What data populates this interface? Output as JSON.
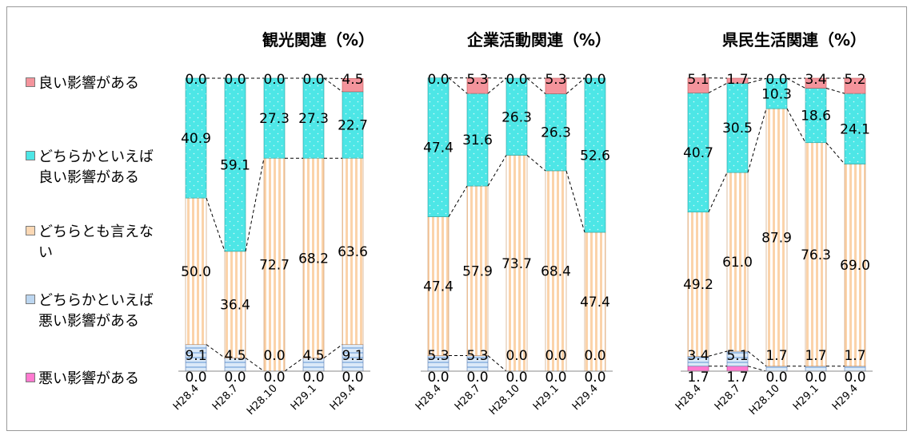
{
  "categories": [
    "H28.4",
    "H28.7",
    "H28.10",
    "H29.1",
    "H29.4"
  ],
  "legend": [
    {
      "key": "good",
      "label": "良い影響がある",
      "color": "#f4949c"
    },
    {
      "key": "somewhat_good",
      "label": "どちらかといえば\n良い影響がある",
      "color": "#4de6e6"
    },
    {
      "key": "neutral",
      "label": "どちらとも言えな\nい",
      "color": "#fbd8b4"
    },
    {
      "key": "somewhat_bad",
      "label": "どちらかといえば\n悪い影響がある",
      "color": "#bcd6f0"
    },
    {
      "key": "bad",
      "label": "悪い影響がある",
      "color": "#ff7ad0"
    }
  ],
  "chart_data": [
    {
      "type": "bar",
      "stacked": true,
      "percent": true,
      "title": "観光関連（%）",
      "categories": [
        "H28.4",
        "H28.7",
        "H28.10",
        "H29.1",
        "H29.4"
      ],
      "series": [
        {
          "name": "悪い影響がある",
          "values": [
            0.0,
            0.0,
            0.0,
            0.0,
            0.0
          ]
        },
        {
          "name": "どちらかといえば悪い影響がある",
          "values": [
            9.1,
            4.5,
            0.0,
            4.5,
            9.1
          ]
        },
        {
          "name": "どちらとも言えない",
          "values": [
            50.0,
            36.4,
            72.7,
            68.2,
            63.6
          ]
        },
        {
          "name": "どちらかといえば良い影響がある",
          "values": [
            40.9,
            59.1,
            27.3,
            27.3,
            22.7
          ]
        },
        {
          "name": "良い影響がある",
          "values": [
            0.0,
            0.0,
            0.0,
            0.0,
            4.5
          ]
        }
      ],
      "ylim": [
        0,
        100
      ]
    },
    {
      "type": "bar",
      "stacked": true,
      "percent": true,
      "title": "企業活動関連（%）",
      "categories": [
        "H28.4",
        "H28.7",
        "H28.10",
        "H29.1",
        "H29.4"
      ],
      "series": [
        {
          "name": "悪い影響がある",
          "values": [
            0.0,
            0.0,
            0.0,
            0.0,
            0.0
          ]
        },
        {
          "name": "どちらかといえば悪い影響がある",
          "values": [
            5.3,
            5.3,
            0.0,
            0.0,
            0.0
          ]
        },
        {
          "name": "どちらとも言えない",
          "values": [
            47.4,
            57.9,
            73.7,
            68.4,
            47.4
          ]
        },
        {
          "name": "どちらかといえば良い影響がある",
          "values": [
            47.4,
            31.6,
            26.3,
            26.3,
            52.6
          ]
        },
        {
          "name": "良い影響がある",
          "values": [
            0.0,
            5.3,
            0.0,
            5.3,
            0.0
          ]
        }
      ],
      "ylim": [
        0,
        100
      ]
    },
    {
      "type": "bar",
      "stacked": true,
      "percent": true,
      "title": "県民生活関連（%）",
      "categories": [
        "H28.4",
        "H28.7",
        "H28.10",
        "H29.1",
        "H29.4"
      ],
      "series": [
        {
          "name": "悪い影響がある",
          "values": [
            1.7,
            1.7,
            0.0,
            0.0,
            0.0
          ]
        },
        {
          "name": "どちらかといえば悪い影響がある",
          "values": [
            3.4,
            5.1,
            1.7,
            1.7,
            1.7
          ]
        },
        {
          "name": "どちらとも言えない",
          "values": [
            49.2,
            61.0,
            87.9,
            76.3,
            69.0
          ]
        },
        {
          "name": "どちらかといえば良い影響がある",
          "values": [
            40.7,
            30.5,
            10.3,
            18.6,
            24.1
          ]
        },
        {
          "name": "良い影響がある",
          "values": [
            5.1,
            1.7,
            0.0,
            3.4,
            5.2
          ]
        }
      ],
      "ylim": [
        0,
        100
      ]
    }
  ]
}
